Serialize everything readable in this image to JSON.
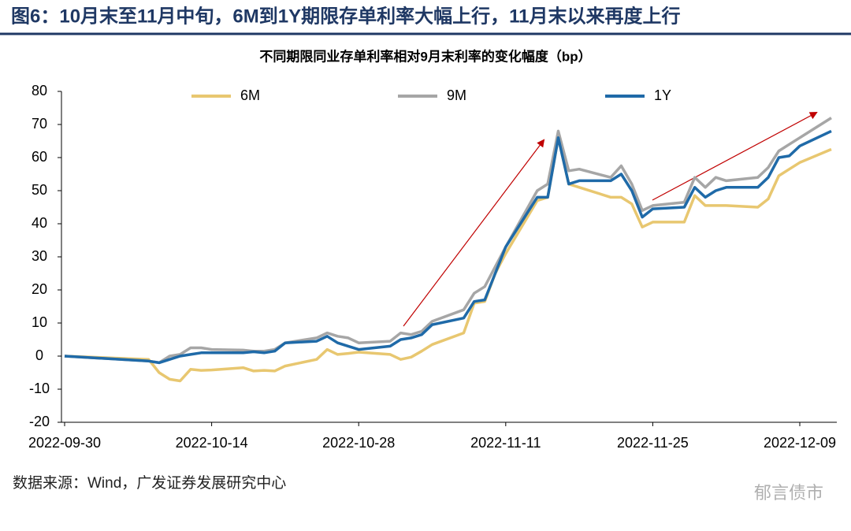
{
  "chart_data": {
    "type": "line",
    "title": "图6：10月末至11月中旬，6M到1Y期限存单利率大幅上行，11月末以来再度上行",
    "subtitle": "不同期限同业存单利率相对9月末利率的变化幅度（bp）",
    "source": "数据来源：Wind，广发证券发展研究中心",
    "watermark": "郁言债市",
    "x": [
      "2022-09-30",
      "2022-10-08",
      "2022-10-09",
      "2022-10-10",
      "2022-10-11",
      "2022-10-12",
      "2022-10-13",
      "2022-10-14",
      "2022-10-17",
      "2022-10-18",
      "2022-10-19",
      "2022-10-20",
      "2022-10-21",
      "2022-10-24",
      "2022-10-25",
      "2022-10-26",
      "2022-10-27",
      "2022-10-28",
      "2022-10-31",
      "2022-11-01",
      "2022-11-02",
      "2022-11-03",
      "2022-11-04",
      "2022-11-07",
      "2022-11-08",
      "2022-11-09",
      "2022-11-10",
      "2022-11-11",
      "2022-11-14",
      "2022-11-15",
      "2022-11-16",
      "2022-11-17",
      "2022-11-18",
      "2022-11-21",
      "2022-11-22",
      "2022-11-23",
      "2022-11-24",
      "2022-11-25",
      "2022-11-28",
      "2022-11-29",
      "2022-11-30",
      "2022-12-01",
      "2022-12-02",
      "2022-12-05",
      "2022-12-06",
      "2022-12-07",
      "2022-12-08",
      "2022-12-09",
      "2022-12-12"
    ],
    "series": [
      {
        "name": "6M",
        "color": "#e8c770",
        "values": [
          0,
          -1,
          -5,
          -7,
          -7.5,
          -4,
          -4.3,
          -4.2,
          -3.5,
          -4.5,
          -4.3,
          -4.5,
          -3,
          -1,
          2,
          0.5,
          0.8,
          1.2,
          0.5,
          -1,
          -0.3,
          1.5,
          3.5,
          7,
          16,
          16.5,
          25,
          31,
          47,
          48,
          66,
          52,
          51,
          48,
          48,
          46,
          39,
          40.5,
          40.5,
          48.5,
          45.5,
          45.5,
          45.5,
          45,
          47.5,
          54.5,
          56.5,
          58.5,
          62.5
        ]
      },
      {
        "name": "9M",
        "color": "#a6a6a6",
        "values": [
          0,
          -1.5,
          -2,
          0,
          0.5,
          2.5,
          2.5,
          2,
          1.8,
          1.5,
          1.5,
          2,
          4,
          5.5,
          7,
          6,
          5.5,
          4,
          4.5,
          7,
          6.5,
          7.5,
          10.5,
          14,
          19,
          21,
          27,
          33,
          50,
          52,
          68,
          56,
          56.5,
          54,
          57.5,
          52,
          44,
          45.5,
          46.5,
          54,
          51,
          54,
          53,
          54,
          57,
          62,
          64,
          66,
          72
        ]
      },
      {
        "name": "1Y",
        "color": "#1f6aa8",
        "values": [
          0,
          -1.5,
          -2,
          -1,
          0,
          0.5,
          1,
          1,
          1,
          1.3,
          1,
          1.5,
          4,
          4.5,
          6,
          4,
          3,
          2,
          3,
          5,
          5.5,
          6.5,
          9.5,
          11.5,
          16.5,
          17,
          25,
          33,
          48,
          48,
          66,
          52,
          53,
          53,
          55,
          50,
          42,
          44.5,
          45,
          51,
          48,
          50,
          51,
          51,
          54,
          60,
          60.5,
          63.5,
          68
        ]
      }
    ],
    "xlim": [
      "2022-09-30",
      "2022-12-12"
    ],
    "xticks": [
      "2022-09-30",
      "2022-10-14",
      "2022-10-28",
      "2022-11-11",
      "2022-11-25",
      "2022-12-09"
    ],
    "ylim": [
      -20,
      80
    ],
    "yticks": [
      -20,
      -10,
      0,
      10,
      20,
      30,
      40,
      50,
      60,
      70,
      80
    ],
    "legend": "top"
  }
}
